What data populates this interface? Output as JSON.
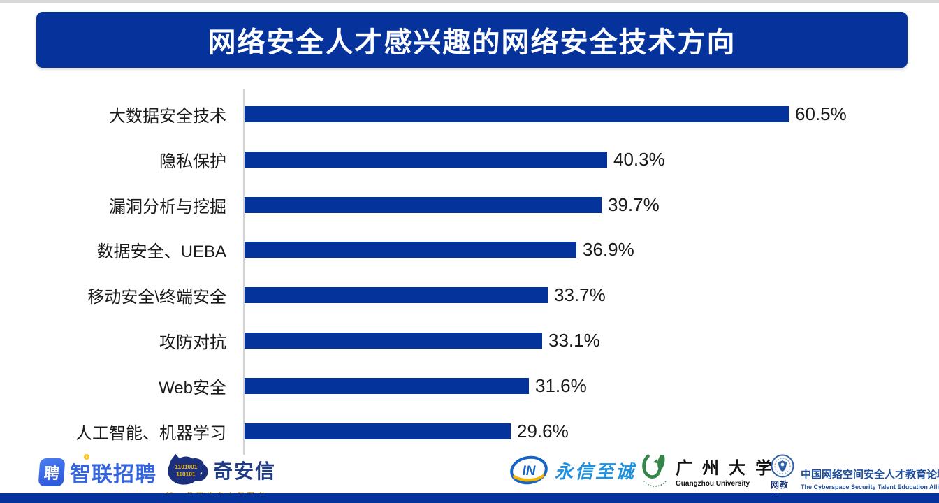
{
  "accent_color": "#05339b",
  "bar_color": "#04339b",
  "chart_data": {
    "type": "bar",
    "orientation": "horizontal",
    "title": "网络安全人才感兴趣的网络安全技术方向",
    "categories": [
      "大数据安全技术",
      "隐私保护",
      "漏洞分析与挖掘",
      "数据安全、UEBA",
      "移动安全\\终端安全",
      "攻防对抗",
      "Web安全",
      "人工智能、机器学习"
    ],
    "values": [
      60.5,
      40.3,
      39.7,
      36.9,
      33.7,
      33.1,
      31.6,
      29.6
    ],
    "value_labels": [
      "60.5%",
      "40.3%",
      "39.7%",
      "36.9%",
      "33.7%",
      "33.1%",
      "31.6%",
      "29.6%"
    ],
    "xlim": [
      0,
      75
    ],
    "grid": false,
    "legend": "none",
    "bar_color": "#04339b"
  },
  "footer": {
    "zhaopin": {
      "icon_char": "聘",
      "name": "智联招聘"
    },
    "qianxin": {
      "name": "奇安信",
      "tagline": "新一代网络安全领军者",
      "binary_line1": "1101001",
      "binary_line2": "110101"
    },
    "yongxin": {
      "icon_text": "IN",
      "name": "永信至诚"
    },
    "guangzhou_university": {
      "name_cn": "广 州 大 学",
      "name_en": "Guangzhou University"
    },
    "alliance": {
      "seal_text": "网教盟",
      "name_cn": "中国网络空间安全人才教育论坛",
      "name_en": "The Cyberspace Security Talent Education Alliance of China"
    }
  }
}
